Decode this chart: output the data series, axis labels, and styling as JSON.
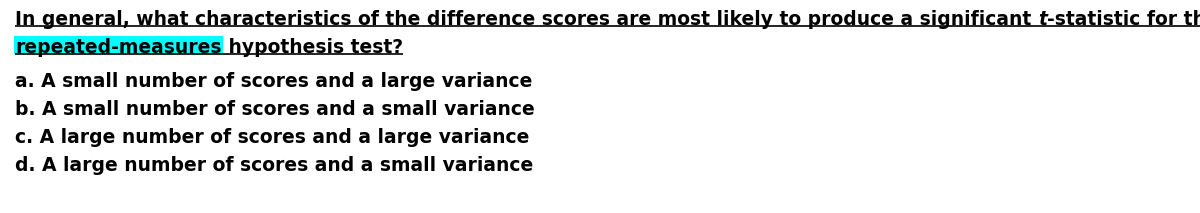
{
  "bg_color": "#ffffff",
  "line1_part1": "In general, what characteristics of the difference scores are most likely to produce a significant ",
  "line1_italic": "t",
  "line1_part2": "-statistic for the",
  "line2_highlighted": "repeated-measures",
  "line2_rest": " hypothesis test?",
  "option_a": "a. A small number of scores and a large variance",
  "option_b": "b. A small number of scores and a small variance",
  "option_c": "c. A large number of scores and a large variance",
  "option_d": "d. A large number of scores and a small variance",
  "highlight_color": "#00FFFF",
  "text_color": "#000000",
  "font_size_pts": 13.5
}
